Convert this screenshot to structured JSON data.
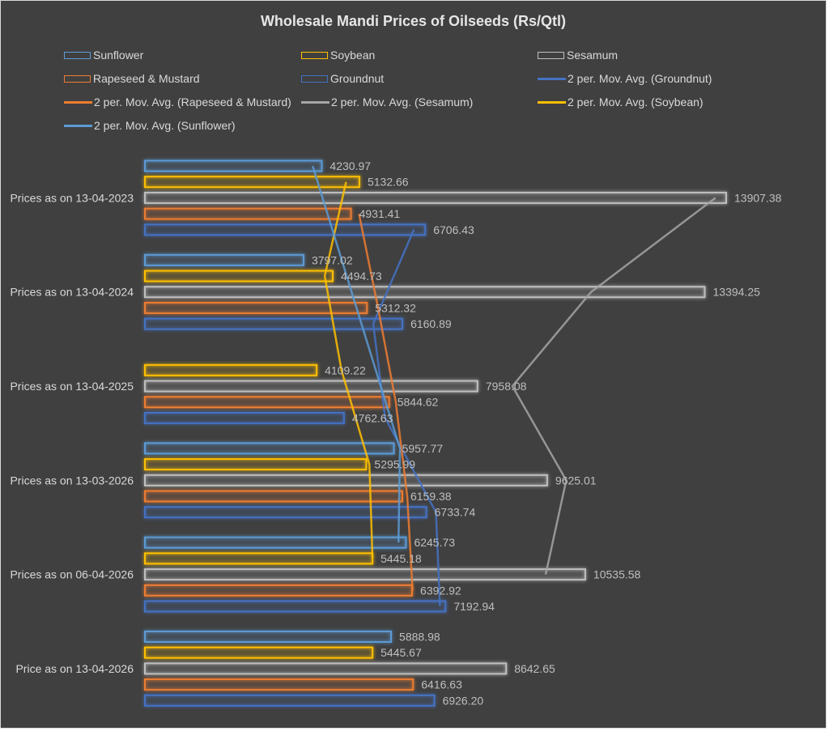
{
  "chart_data": {
    "type": "bar",
    "orientation": "horizontal",
    "title": "Wholesale Mandi Prices of Oilseeds (Rs/Qtl)",
    "xlabel": "",
    "ylabel": "",
    "xlim": [
      0,
      14000
    ],
    "grid": false,
    "legend_position": "top",
    "categories": [
      "Prices as on 13-04-2023",
      "Prices as on 13-04-2024",
      "Prices as on 13-04-2025",
      "Prices as on 13-03-2026",
      "Prices as on 06-04-2026",
      "Price as on 13-04-2026"
    ],
    "series": [
      {
        "name": "Sunflower",
        "color": "#5b9bd5",
        "values": [
          4230.97,
          3797.02,
          null,
          5957.77,
          6245.73,
          5888.98
        ],
        "labels": [
          "4230.97",
          "3797.02",
          "",
          "5957.77",
          "6245.73",
          "5888.98"
        ]
      },
      {
        "name": "Soybean",
        "color": "#ffc000",
        "values": [
          5132.66,
          4494.73,
          4109.22,
          5295.99,
          5445.18,
          5445.67
        ],
        "labels": [
          "5132.66",
          "4494.73",
          "4109.22",
          "5295.99",
          "5445.18",
          "5445.67"
        ]
      },
      {
        "name": "Sesamum",
        "color": "#bfbfbf",
        "values": [
          13907.38,
          13394.25,
          7958.08,
          9625.01,
          10535.58,
          8642.65
        ],
        "labels": [
          "13907.38",
          "13394.25",
          "7958.08",
          "9625.01",
          "10535.58",
          "8642.65"
        ]
      },
      {
        "name": "Rapeseed & Mustard",
        "color": "#ed7d31",
        "values": [
          4931.41,
          5312.32,
          5844.62,
          6159.38,
          6392.92,
          6416.63
        ],
        "labels": [
          "4931.41",
          "5312.32",
          "5844.62",
          "6159.38",
          "6392.92",
          "6416.63"
        ]
      },
      {
        "name": "Groundnut",
        "color": "#4472c4",
        "values": [
          6706.43,
          6160.89,
          4762.63,
          6733.74,
          7192.94,
          6926.2
        ],
        "labels": [
          "6706.43",
          "6160.89",
          "4762.63",
          "6733.74",
          "7192.94",
          "6926.20"
        ]
      }
    ],
    "trendlines": [
      {
        "name": "2 per. Mov. Avg. (Groundnut)",
        "series": "Groundnut",
        "type": "moving_average",
        "period": 2,
        "color": "#4472c4"
      },
      {
        "name": "2 per. Mov. Avg. (Rapeseed & Mustard)",
        "series": "Rapeseed & Mustard",
        "type": "moving_average",
        "period": 2,
        "color": "#ed7d31"
      },
      {
        "name": "2 per. Mov. Avg. (Sesamum)",
        "series": "Sesamum",
        "type": "moving_average",
        "period": 2,
        "color": "#a5a5a5"
      },
      {
        "name": "2 per. Mov. Avg. (Soybean)",
        "series": "Soybean",
        "type": "moving_average",
        "period": 2,
        "color": "#ffc000"
      },
      {
        "name": "2 per. Mov. Avg. (Sunflower)",
        "series": "Sunflower",
        "type": "moving_average",
        "period": 2,
        "color": "#5b9bd5"
      }
    ]
  },
  "legend": [
    {
      "label": "Sunflower",
      "kind": "box",
      "color": "#5b9bd5"
    },
    {
      "label": "Soybean",
      "kind": "box",
      "color": "#ffc000"
    },
    {
      "label": "Sesamum",
      "kind": "box",
      "color": "#bfbfbf"
    },
    {
      "label": "Rapeseed & Mustard",
      "kind": "box",
      "color": "#ed7d31"
    },
    {
      "label": "Groundnut",
      "kind": "box",
      "color": "#4472c4"
    },
    {
      "label": "2 per. Mov. Avg. (Groundnut)",
      "kind": "line",
      "color": "#4472c4"
    },
    {
      "label": "2 per. Mov. Avg. (Rapeseed & Mustard)",
      "kind": "line",
      "color": "#ed7d31"
    },
    {
      "label": "2 per. Mov. Avg. (Sesamum)",
      "kind": "line",
      "color": "#a5a5a5"
    },
    {
      "label": "2 per. Mov. Avg. (Soybean)",
      "kind": "line",
      "color": "#ffc000"
    },
    {
      "label": "2 per. Mov. Avg. (Sunflower)",
      "kind": "line",
      "color": "#5b9bd5"
    }
  ]
}
